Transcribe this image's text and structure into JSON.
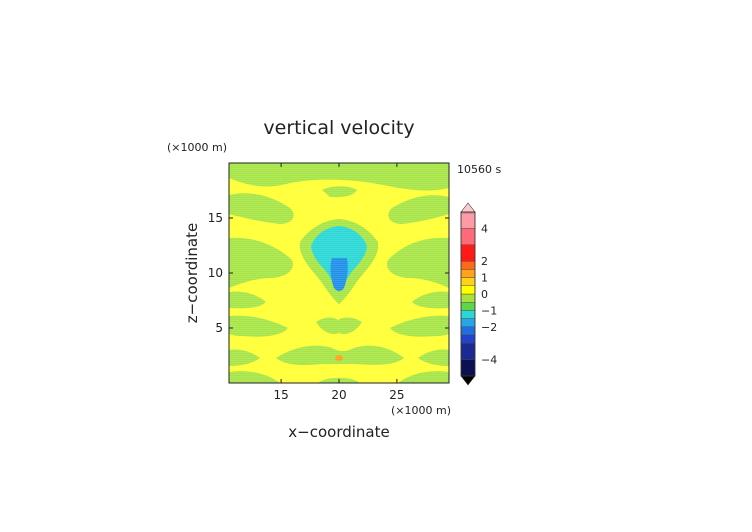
{
  "chart_data": {
    "type": "heatmap",
    "title": "vertical velocity",
    "time_label": "10560 s",
    "xlabel": "x−coordinate",
    "ylabel": "z−coordinate",
    "x_unit": "(×1000 m)",
    "y_unit": "(×1000 m)",
    "xlim": [
      10.5,
      29.5
    ],
    "ylim": [
      0,
      20
    ],
    "x_ticks": [
      "15",
      "20",
      "25"
    ],
    "y_ticks": [
      "5",
      "10",
      "15"
    ],
    "colorbar": {
      "tick_labels": [
        "4",
        "2",
        "1",
        "0",
        "−1",
        "−2",
        "−4"
      ],
      "levels": [
        -5,
        -4,
        -3,
        -2.5,
        -2,
        -1.5,
        -1,
        -0.5,
        0,
        0.5,
        1,
        1.5,
        2,
        3,
        4,
        5
      ],
      "colors": [
        "#0b1050",
        "#1b2a92",
        "#2244cc",
        "#1f6fe0",
        "#26a6e6",
        "#2ad6d6",
        "#5fd64a",
        "#a8e03c",
        "#ffff00",
        "#ffd21a",
        "#ffa21a",
        "#ff6a1a",
        "#ff1a1a",
        "#ff6a7a",
        "#ff9aa6",
        "#ffb5bc"
      ]
    },
    "colors": {
      "weak_positive": "#ffff33",
      "weak_negative": "#a7e546",
      "moderate_negative": "#2ad6d6",
      "strong_negative": "#1f8fe8",
      "weak_updraft": "#ffa21a"
    }
  }
}
